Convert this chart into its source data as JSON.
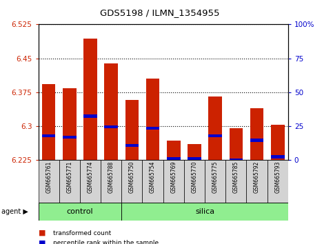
{
  "title": "GDS5198 / ILMN_1354955",
  "samples": [
    "GSM665761",
    "GSM665771",
    "GSM665774",
    "GSM665788",
    "GSM665750",
    "GSM665754",
    "GSM665769",
    "GSM665770",
    "GSM665775",
    "GSM665785",
    "GSM665792",
    "GSM665793"
  ],
  "bar_values": [
    6.393,
    6.383,
    6.493,
    6.438,
    6.358,
    6.405,
    6.268,
    6.26,
    6.365,
    6.295,
    6.34,
    6.302
  ],
  "percentile_values": [
    6.278,
    6.275,
    6.322,
    6.298,
    6.257,
    6.295,
    6.228,
    6.228,
    6.278,
    6.225,
    6.268,
    6.232
  ],
  "ymin": 6.225,
  "ymax": 6.525,
  "yticks_left": [
    6.225,
    6.3,
    6.375,
    6.45,
    6.525
  ],
  "yticks_right": [
    0,
    25,
    50,
    75,
    100
  ],
  "bar_color": "#cc2200",
  "percentile_color": "#0000cc",
  "bar_width": 0.65,
  "tick_area_color": "#d3d3d3",
  "control_count": 4,
  "silica_count": 8,
  "group_color": "#90ee90",
  "legend_items": [
    "transformed count",
    "percentile rank within the sample"
  ]
}
